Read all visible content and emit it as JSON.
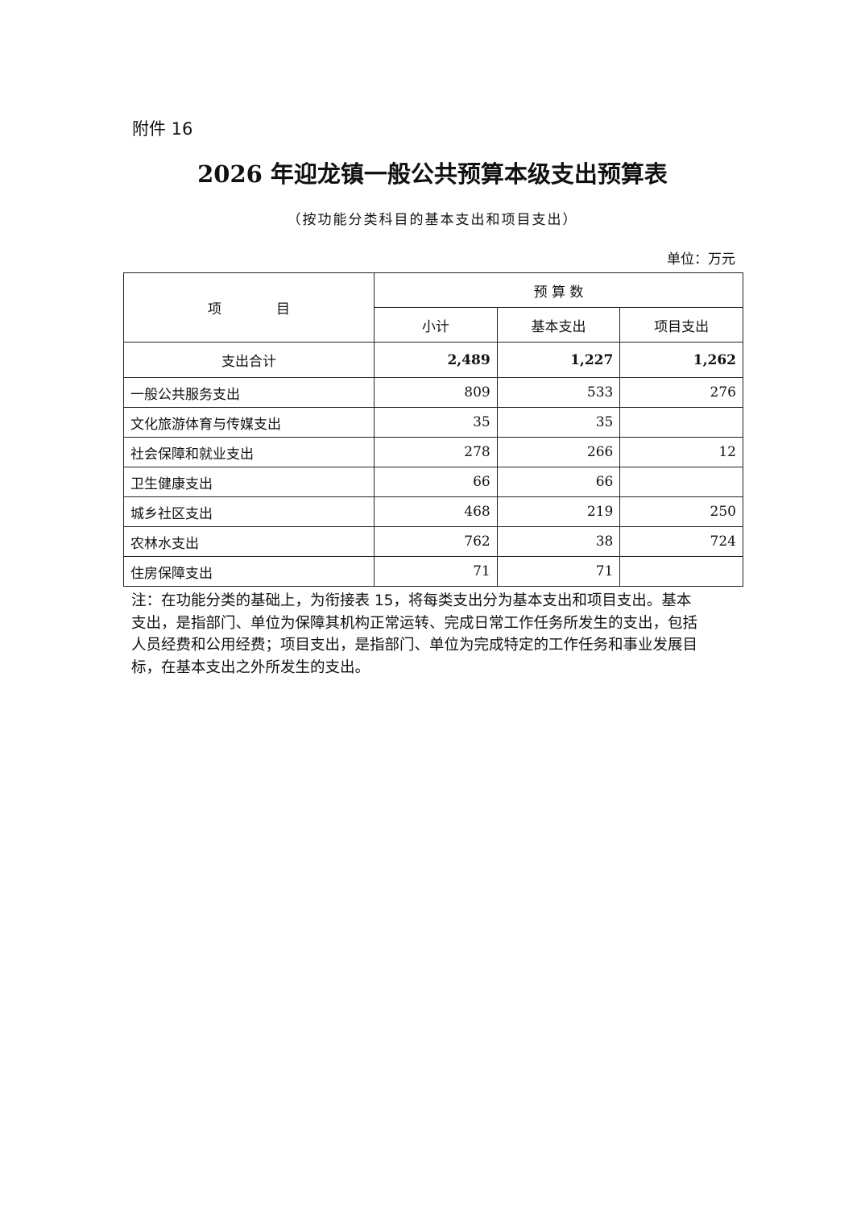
{
  "attachment": "附件 16",
  "title": "2026 年迎龙镇一般公共预算本级支出预算表",
  "subtitle": "（按功能分类科目的基本支出和项目支出）",
  "unit": "单位：万元",
  "table": {
    "header_item": "项　　　　目",
    "header_group": "预 算 数",
    "columns": [
      "小计",
      "基本支出",
      "项目支出"
    ],
    "total": {
      "label": "支出合计",
      "values": [
        "2,489",
        "1,227",
        "1,262"
      ]
    },
    "rows": [
      {
        "label": "一般公共服务支出",
        "values": [
          "809",
          "533",
          "276"
        ]
      },
      {
        "label": "文化旅游体育与传媒支出",
        "values": [
          "35",
          "35",
          ""
        ]
      },
      {
        "label": "社会保障和就业支出",
        "values": [
          "278",
          "266",
          "12"
        ]
      },
      {
        "label": "卫生健康支出",
        "values": [
          "66",
          "66",
          ""
        ]
      },
      {
        "label": "城乡社区支出",
        "values": [
          "468",
          "219",
          "250"
        ]
      },
      {
        "label": "农林水支出",
        "values": [
          "762",
          "38",
          "724"
        ]
      },
      {
        "label": "住房保障支出",
        "values": [
          "71",
          "71",
          ""
        ]
      }
    ]
  },
  "note_lines": [
    "注：在功能分类的基础上，为衔接表 15，将每类支出分为基本支出和项目支出。基本",
    "支出，是指部门、单位为保障其机构正常运转、完成日常工作任务所发生的支出，包括",
    "人员经费和公用经费；项目支出，是指部门、单位为完成特定的工作任务和事业发展目",
    "标，在基本支出之外所发生的支出。"
  ]
}
